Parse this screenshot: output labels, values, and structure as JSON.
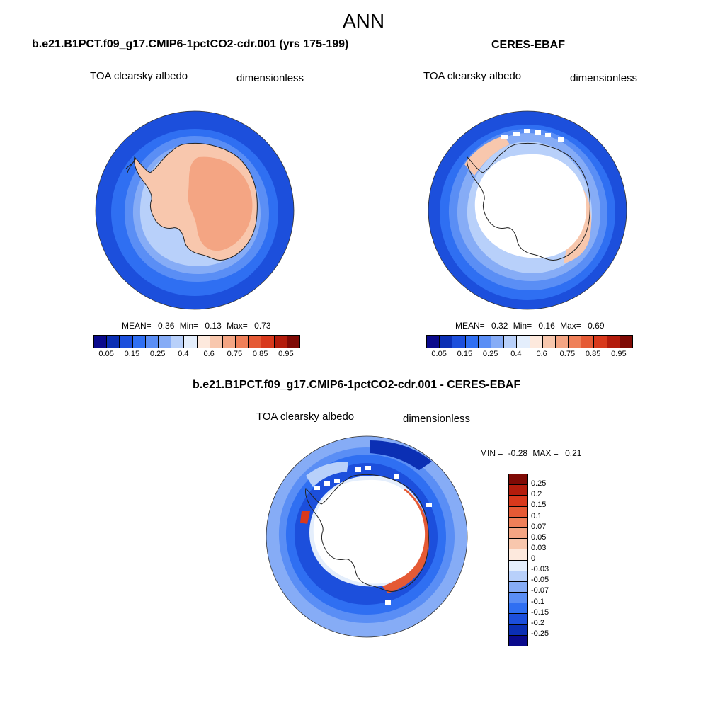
{
  "page": {
    "title": "ANN"
  },
  "colors": {
    "abs_levels": [
      "#0a0a8c",
      "#0b2fb4",
      "#1c4fdc",
      "#2f6ff2",
      "#5a8ef5",
      "#86acf6",
      "#b8d0fa",
      "#e4eefc",
      "#fde9dd",
      "#f8c7ad",
      "#f4a583",
      "#ef8059",
      "#e55a35",
      "#d8391c",
      "#b31c0c",
      "#7f0a05"
    ],
    "diff_levels": [
      "#0a0a8c",
      "#0b2fb4",
      "#1c4fdc",
      "#2f6ff2",
      "#5a8ef5",
      "#86acf6",
      "#b8d0fa",
      "#e4eefc",
      "#fde9dd",
      "#f8c7ad",
      "#f4a583",
      "#ef8059",
      "#e55a35",
      "#d8391c",
      "#b31c0c",
      "#7f0a05"
    ]
  },
  "panels": {
    "model": {
      "title": "b.e21.B1PCT.f09_g17.CMIP6-1pctCO2-cdr.001 (yrs 175-199)",
      "left_label": "TOA clearsky albedo",
      "right_label": "dimensionless",
      "stats": {
        "mean_label": "MEAN=",
        "mean": "0.36",
        "min_label": "Min=",
        "min": "0.13",
        "max_label": "Max=",
        "max": "0.73"
      },
      "colorbar_ticks": [
        "0.05",
        "0.15",
        "0.25",
        "0.4",
        "0.6",
        "0.75",
        "0.85",
        "0.95"
      ]
    },
    "obs": {
      "title": "CERES-EBAF",
      "left_label": "TOA clearsky albedo",
      "right_label": "dimensionless",
      "stats": {
        "mean_label": "MEAN=",
        "mean": "0.32",
        "min_label": "Min=",
        "min": "0.16",
        "max_label": "Max=",
        "max": "0.69"
      },
      "colorbar_ticks": [
        "0.05",
        "0.15",
        "0.25",
        "0.4",
        "0.6",
        "0.75",
        "0.85",
        "0.95"
      ]
    },
    "diff": {
      "title": "b.e21.B1PCT.f09_g17.CMIP6-1pctCO2-cdr.001 - CERES-EBAF",
      "left_label": "TOA clearsky albedo",
      "right_label": "dimensionless",
      "stats": {
        "min_label": "MIN =",
        "min": "-0.28",
        "max_label": "MAX =",
        "max": "0.21"
      },
      "colorbar_ticks": [
        "0.25",
        "0.2",
        "0.15",
        "0.1",
        "0.07",
        "0.05",
        "0.03",
        "0",
        "-0.03",
        "-0.05",
        "-0.07",
        "-0.1",
        "-0.15",
        "-0.2",
        "-0.25"
      ]
    }
  }
}
